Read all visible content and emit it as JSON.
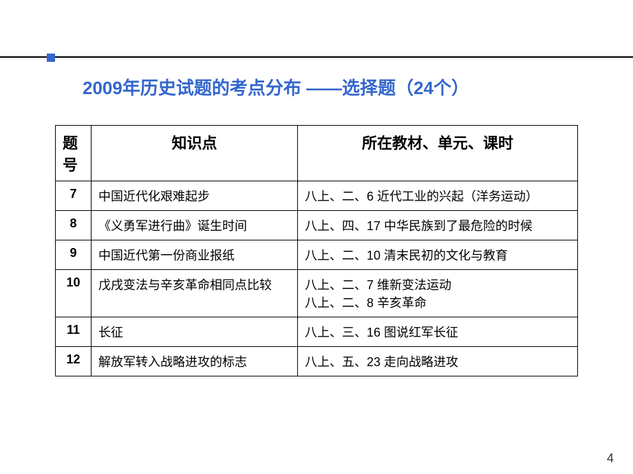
{
  "title_text": "2009年历史试题的考点分布 ——选择题（24个）",
  "title_color": "#3366cc",
  "title_fontsize": 26,
  "accent_color": "#3366cc",
  "line_color": "#000000",
  "table": {
    "header_fontsize": 22,
    "cell_fontsize": 18,
    "columns": {
      "num": "题号",
      "kp": "知识点",
      "loc": "所在教材、单元、课时"
    },
    "rows": [
      {
        "num": "7",
        "kp": "中国近代化艰难起步",
        "loc": "八上、二、6 近代工业的兴起（洋务运动）"
      },
      {
        "num": "8",
        "kp": "《义勇军进行曲》诞生时间",
        "loc": "八上、四、17 中华民族到了最危险的时候"
      },
      {
        "num": "9",
        "kp": "中国近代第一份商业报纸",
        "loc": "八上、二、10 清末民初的文化与教育"
      },
      {
        "num": "10",
        "kp": "戊戌变法与辛亥革命相同点比较",
        "loc": "八上、二、7 维新变法运动\n八上、二、8 辛亥革命"
      },
      {
        "num": "11",
        "kp": "长征",
        "loc": "八上、三、16 图说红军长征"
      },
      {
        "num": "12",
        "kp": "解放军转入战略进攻的标志",
        "loc": "八上、五、23 走向战略进攻"
      }
    ]
  },
  "page_number": "4",
  "page_number_fontsize": 18
}
